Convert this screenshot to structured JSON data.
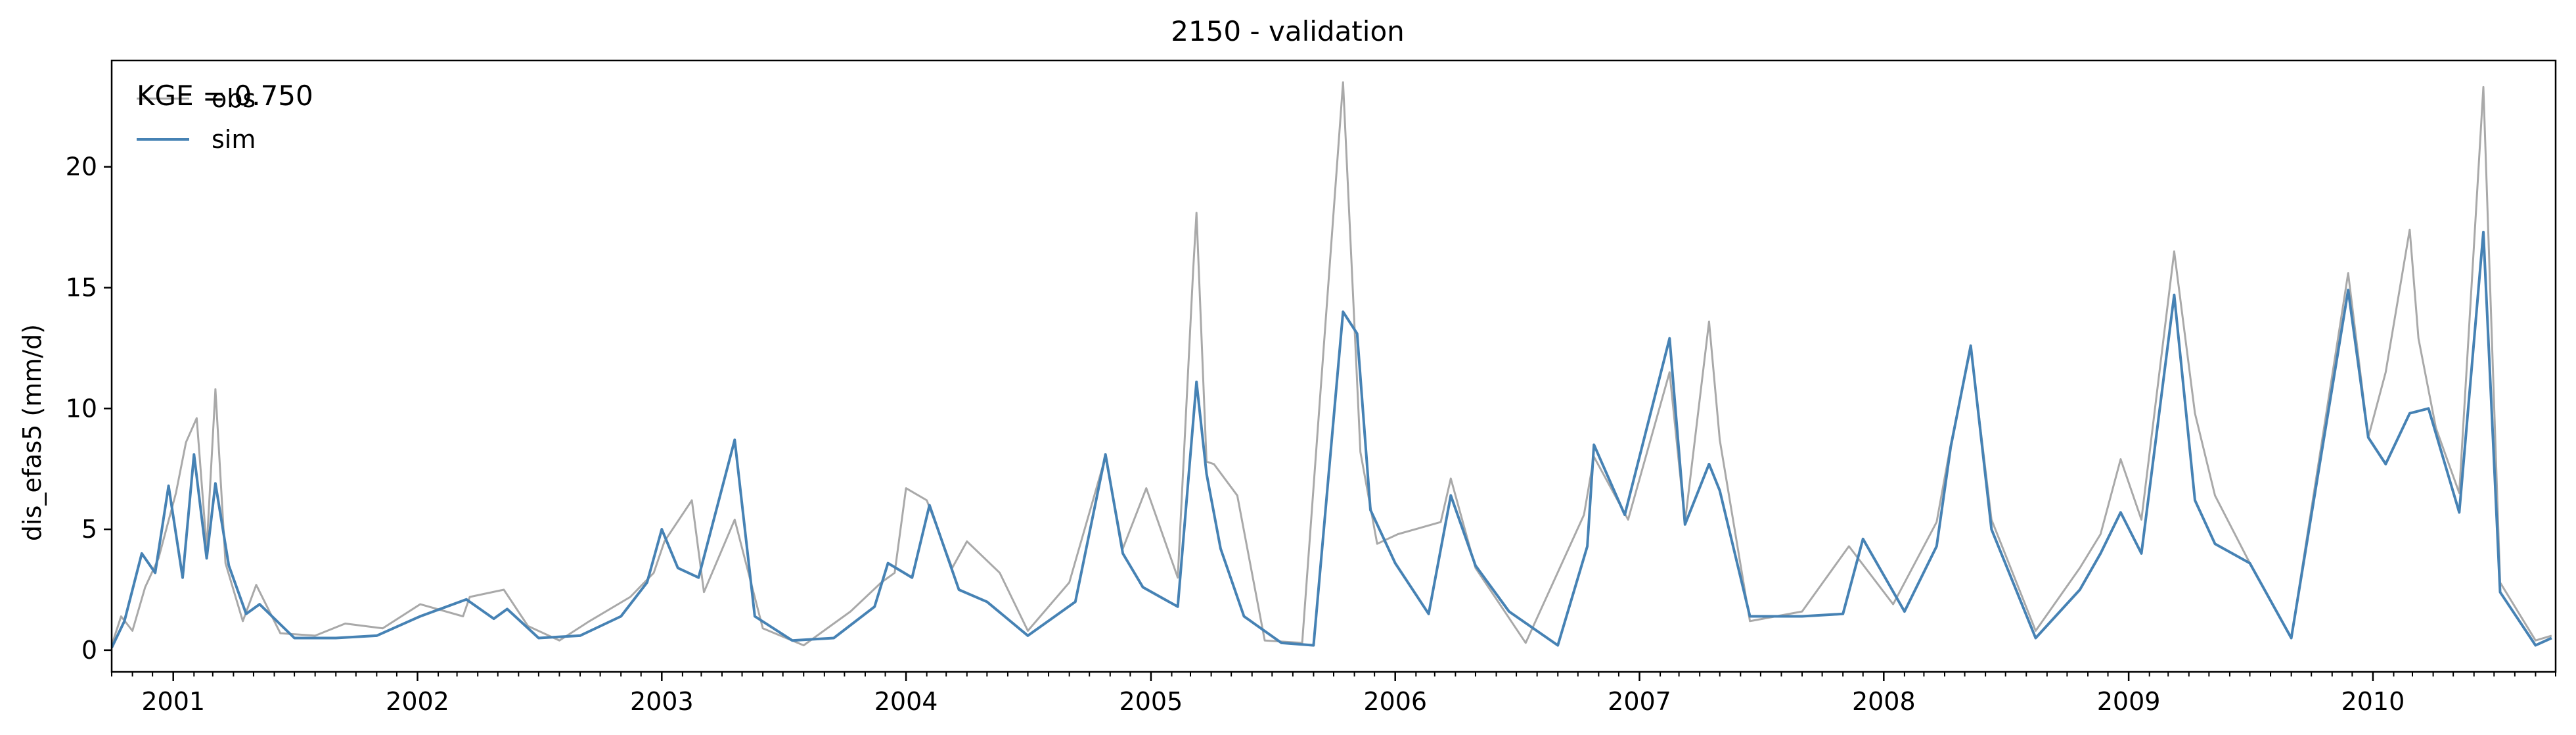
{
  "chart_data": {
    "type": "line",
    "title": "2150 - validation",
    "xlabel": "",
    "ylabel": "dis_efas5 (mm/d)",
    "xlim": [
      "2000-10-01",
      "2010-10-01"
    ],
    "ylim": [
      -0.9,
      24.4
    ],
    "yticks": [
      0,
      5,
      10,
      15,
      20
    ],
    "xticks": [
      "2001",
      "2002",
      "2003",
      "2004",
      "2005",
      "2006",
      "2007",
      "2008",
      "2009",
      "2010"
    ],
    "annotation": "KGE = 0.750",
    "legend_position": "top-left",
    "grid": false,
    "series": [
      {
        "name": "obs",
        "color": "#a9a9a9",
        "points": [
          [
            "2000-10-01",
            0.2
          ],
          [
            "2000-10-15",
            1.4
          ],
          [
            "2000-11-01",
            0.8
          ],
          [
            "2000-11-20",
            2.6
          ],
          [
            "2000-12-10",
            3.8
          ],
          [
            "2001-01-05",
            6.5
          ],
          [
            "2001-01-20",
            8.6
          ],
          [
            "2001-02-05",
            9.6
          ],
          [
            "2001-02-20",
            4.2
          ],
          [
            "2001-03-05",
            10.8
          ],
          [
            "2001-03-20",
            3.6
          ],
          [
            "2001-04-15",
            1.2
          ],
          [
            "2001-05-05",
            2.7
          ],
          [
            "2001-06-10",
            0.7
          ],
          [
            "2001-08-01",
            0.6
          ],
          [
            "2001-09-15",
            1.1
          ],
          [
            "2001-11-10",
            0.9
          ],
          [
            "2002-01-05",
            1.9
          ],
          [
            "2002-03-10",
            1.4
          ],
          [
            "2002-03-20",
            2.2
          ],
          [
            "2002-05-10",
            2.5
          ],
          [
            "2002-06-15",
            1.0
          ],
          [
            "2002-08-01",
            0.4
          ],
          [
            "2002-09-15",
            1.2
          ],
          [
            "2002-11-15",
            2.2
          ],
          [
            "2002-12-20",
            3.2
          ],
          [
            "2003-01-05",
            4.5
          ],
          [
            "2003-02-15",
            6.2
          ],
          [
            "2003-03-05",
            2.4
          ],
          [
            "2003-04-20",
            5.4
          ],
          [
            "2003-06-01",
            0.9
          ],
          [
            "2003-08-01",
            0.2
          ],
          [
            "2003-10-10",
            1.6
          ],
          [
            "2003-11-25",
            2.8
          ],
          [
            "2003-12-15",
            3.2
          ],
          [
            "2004-01-01",
            6.7
          ],
          [
            "2004-02-01",
            6.2
          ],
          [
            "2004-03-10",
            3.4
          ],
          [
            "2004-04-01",
            4.5
          ],
          [
            "2004-05-20",
            3.2
          ],
          [
            "2004-07-01",
            0.8
          ],
          [
            "2004-09-01",
            2.8
          ],
          [
            "2004-10-25",
            8.0
          ],
          [
            "2004-11-20",
            4.2
          ],
          [
            "2004-12-25",
            6.7
          ],
          [
            "2005-02-10",
            3.0
          ],
          [
            "2005-03-05",
            15.7
          ],
          [
            "2005-03-10",
            18.1
          ],
          [
            "2005-03-25",
            7.8
          ],
          [
            "2005-04-05",
            7.7
          ],
          [
            "2005-05-10",
            6.4
          ],
          [
            "2005-06-20",
            0.4
          ],
          [
            "2005-08-15",
            0.3
          ],
          [
            "2005-10-15",
            23.5
          ],
          [
            "2005-11-10",
            8.2
          ],
          [
            "2005-12-05",
            4.4
          ],
          [
            "2006-01-05",
            4.8
          ],
          [
            "2006-03-10",
            5.3
          ],
          [
            "2006-03-25",
            7.1
          ],
          [
            "2006-05-01",
            3.4
          ],
          [
            "2006-07-15",
            0.3
          ],
          [
            "2006-10-10",
            5.6
          ],
          [
            "2006-10-25",
            8.0
          ],
          [
            "2006-12-15",
            5.4
          ],
          [
            "2007-02-15",
            11.5
          ],
          [
            "2007-03-10",
            5.3
          ],
          [
            "2007-04-15",
            13.6
          ],
          [
            "2007-05-01",
            8.7
          ],
          [
            "2007-06-15",
            1.2
          ],
          [
            "2007-09-01",
            1.6
          ],
          [
            "2007-11-10",
            4.3
          ],
          [
            "2008-01-15",
            1.9
          ],
          [
            "2008-03-20",
            5.3
          ],
          [
            "2008-04-10",
            8.5
          ],
          [
            "2008-05-10",
            12.5
          ],
          [
            "2008-06-10",
            5.4
          ],
          [
            "2008-08-15",
            0.8
          ],
          [
            "2008-10-20",
            3.4
          ],
          [
            "2008-11-20",
            4.8
          ],
          [
            "2008-12-20",
            7.9
          ],
          [
            "2009-01-20",
            5.4
          ],
          [
            "2009-03-10",
            16.5
          ],
          [
            "2009-04-10",
            9.8
          ],
          [
            "2009-05-10",
            6.4
          ],
          [
            "2009-07-01",
            3.6
          ],
          [
            "2009-09-01",
            0.5
          ],
          [
            "2009-11-25",
            15.6
          ],
          [
            "2009-12-25",
            8.8
          ],
          [
            "2010-01-20",
            11.5
          ],
          [
            "2010-02-25",
            17.4
          ],
          [
            "2010-03-10",
            12.9
          ],
          [
            "2010-04-05",
            9.2
          ],
          [
            "2010-05-10",
            6.5
          ],
          [
            "2010-06-15",
            23.3
          ],
          [
            "2010-07-10",
            2.8
          ],
          [
            "2010-09-01",
            0.4
          ],
          [
            "2010-09-25",
            0.6
          ]
        ]
      },
      {
        "name": "sim",
        "color": "#4682b4",
        "points": [
          [
            "2000-10-01",
            0.1
          ],
          [
            "2000-10-20",
            1.2
          ],
          [
            "2000-11-15",
            4.0
          ],
          [
            "2000-12-05",
            3.2
          ],
          [
            "2000-12-25",
            6.8
          ],
          [
            "2001-01-15",
            3.0
          ],
          [
            "2001-02-01",
            8.1
          ],
          [
            "2001-02-20",
            3.8
          ],
          [
            "2001-03-05",
            6.9
          ],
          [
            "2001-03-25",
            3.5
          ],
          [
            "2001-04-20",
            1.5
          ],
          [
            "2001-05-10",
            1.9
          ],
          [
            "2001-07-01",
            0.5
          ],
          [
            "2001-09-01",
            0.5
          ],
          [
            "2001-11-01",
            0.6
          ],
          [
            "2002-01-05",
            1.4
          ],
          [
            "2002-03-15",
            2.1
          ],
          [
            "2002-04-25",
            1.3
          ],
          [
            "2002-05-15",
            1.7
          ],
          [
            "2002-07-01",
            0.5
          ],
          [
            "2002-09-01",
            0.6
          ],
          [
            "2002-11-01",
            1.4
          ],
          [
            "2002-12-10",
            2.8
          ],
          [
            "2003-01-01",
            5.0
          ],
          [
            "2003-01-25",
            3.4
          ],
          [
            "2003-02-25",
            3.0
          ],
          [
            "2003-04-20",
            8.7
          ],
          [
            "2003-05-20",
            1.4
          ],
          [
            "2003-07-15",
            0.4
          ],
          [
            "2003-09-15",
            0.5
          ],
          [
            "2003-11-15",
            1.8
          ],
          [
            "2003-12-05",
            3.6
          ],
          [
            "2004-01-10",
            3.0
          ],
          [
            "2004-02-05",
            6.0
          ],
          [
            "2004-03-20",
            2.5
          ],
          [
            "2004-05-01",
            2.0
          ],
          [
            "2004-07-01",
            0.6
          ],
          [
            "2004-09-10",
            2.0
          ],
          [
            "2004-10-25",
            8.1
          ],
          [
            "2004-11-20",
            4.0
          ],
          [
            "2004-12-20",
            2.6
          ],
          [
            "2005-02-10",
            1.8
          ],
          [
            "2005-03-10",
            11.1
          ],
          [
            "2005-03-25",
            7.3
          ],
          [
            "2005-04-15",
            4.2
          ],
          [
            "2005-05-20",
            1.4
          ],
          [
            "2005-07-15",
            0.3
          ],
          [
            "2005-09-01",
            0.2
          ],
          [
            "2005-10-15",
            14.0
          ],
          [
            "2005-11-05",
            13.1
          ],
          [
            "2005-11-25",
            5.8
          ],
          [
            "2006-01-01",
            3.6
          ],
          [
            "2006-02-20",
            1.5
          ],
          [
            "2006-03-25",
            6.4
          ],
          [
            "2006-05-01",
            3.5
          ],
          [
            "2006-06-20",
            1.6
          ],
          [
            "2006-09-01",
            0.2
          ],
          [
            "2006-10-15",
            4.3
          ],
          [
            "2006-10-25",
            8.5
          ],
          [
            "2006-12-10",
            5.6
          ],
          [
            "2007-02-15",
            12.9
          ],
          [
            "2007-03-10",
            5.2
          ],
          [
            "2007-04-15",
            7.7
          ],
          [
            "2007-05-01",
            6.6
          ],
          [
            "2007-06-15",
            1.4
          ],
          [
            "2007-09-01",
            1.4
          ],
          [
            "2007-11-01",
            1.5
          ],
          [
            "2007-12-01",
            4.6
          ],
          [
            "2008-02-01",
            1.6
          ],
          [
            "2008-03-20",
            4.3
          ],
          [
            "2008-04-10",
            8.4
          ],
          [
            "2008-05-10",
            12.6
          ],
          [
            "2008-06-10",
            5.0
          ],
          [
            "2008-08-15",
            0.5
          ],
          [
            "2008-10-20",
            2.5
          ],
          [
            "2008-11-20",
            4.0
          ],
          [
            "2008-12-20",
            5.7
          ],
          [
            "2009-01-20",
            4.0
          ],
          [
            "2009-03-10",
            14.7
          ],
          [
            "2009-04-10",
            6.2
          ],
          [
            "2009-05-10",
            4.4
          ],
          [
            "2009-07-01",
            3.6
          ],
          [
            "2009-09-01",
            0.5
          ],
          [
            "2009-11-25",
            14.9
          ],
          [
            "2009-12-25",
            8.8
          ],
          [
            "2010-01-20",
            7.7
          ],
          [
            "2010-02-25",
            9.8
          ],
          [
            "2010-03-25",
            10.0
          ],
          [
            "2010-05-10",
            5.7
          ],
          [
            "2010-06-15",
            17.3
          ],
          [
            "2010-07-10",
            2.4
          ],
          [
            "2010-09-01",
            0.2
          ],
          [
            "2010-09-25",
            0.5
          ]
        ]
      }
    ]
  }
}
